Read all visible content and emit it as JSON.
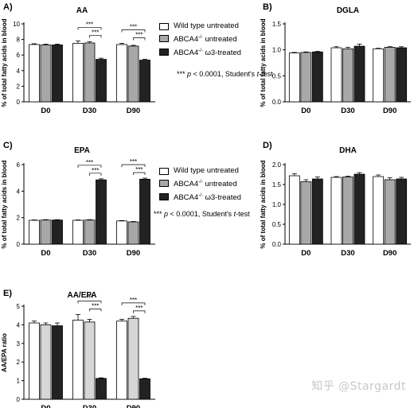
{
  "colors": {
    "wild_type_untreated": "#ffffff",
    "abca4_untreated_A_to_D": "#a8a8a8",
    "abca4_untreated_E": "#d6d6d6",
    "abca4_omega3_treated": "#222222"
  },
  "legend": {
    "items": [
      {
        "label": "Wild type untreated",
        "sup": ""
      },
      {
        "label_pre": "ABCA4",
        "sup": "-/-",
        "label_post": " untreated"
      },
      {
        "label_pre": "ABCA4",
        "sup": "-/-",
        "label_post": " ω3-treated"
      }
    ],
    "stat_note_pre": "*** ",
    "stat_note_p": "p",
    "stat_note_mid": " < 0.0001, Student's ",
    "stat_note_t": "t",
    "stat_note_post": "-test"
  },
  "watermark": "知乎 @Stargardt",
  "chart_data": [
    {
      "panel": "A)",
      "type": "bar",
      "title": "AA",
      "ylabel": "% of total fatty acids in blood",
      "ylim": [
        0,
        10
      ],
      "yticks": [
        "0",
        "2",
        "4",
        "6",
        "8",
        "10"
      ],
      "categories": [
        "D0",
        "D30",
        "D90"
      ],
      "series": [
        {
          "name": "Wild type untreated",
          "values": [
            7.35,
            7.5,
            7.35
          ],
          "errors": [
            0.1,
            0.3,
            0.15
          ]
        },
        {
          "name": "ABCA4-/- untreated",
          "values": [
            7.3,
            7.55,
            7.15
          ],
          "errors": [
            0.1,
            0.15,
            0.1
          ]
        },
        {
          "name": "ABCA4-/- ω3-treated",
          "values": [
            7.3,
            5.45,
            5.35
          ],
          "errors": [
            0.1,
            0.15,
            0.1
          ]
        }
      ],
      "significance": [
        "***",
        "***"
      ]
    },
    {
      "panel": "B)",
      "type": "bar",
      "title": "DGLA",
      "ylabel": "% of total fatty acids in blood",
      "ylim": [
        0,
        1.5
      ],
      "yticks": [
        "0.0",
        "0.5",
        "1.0",
        "1.5"
      ],
      "categories": [
        "D0",
        "D30",
        "D90"
      ],
      "series": [
        {
          "name": "Wild type untreated",
          "values": [
            0.94,
            1.04,
            1.02
          ],
          "errors": [
            0.01,
            0.02,
            0.01
          ]
        },
        {
          "name": "ABCA4-/- untreated",
          "values": [
            0.95,
            1.02,
            1.05
          ],
          "errors": [
            0.01,
            0.03,
            0.01
          ]
        },
        {
          "name": "ABCA4-/- ω3-treated",
          "values": [
            0.96,
            1.07,
            1.04
          ],
          "errors": [
            0.01,
            0.04,
            0.02
          ]
        }
      ],
      "significance": []
    },
    {
      "panel": "C)",
      "type": "bar",
      "title": "EPA",
      "ylabel": "% of total fatty acids in blood",
      "ylim": [
        0,
        6
      ],
      "yticks": [
        "0",
        "2",
        "4",
        "6"
      ],
      "categories": [
        "D0",
        "D30",
        "D90"
      ],
      "series": [
        {
          "name": "Wild type untreated",
          "values": [
            1.8,
            1.8,
            1.75
          ],
          "errors": [
            0.03,
            0.03,
            0.03
          ]
        },
        {
          "name": "ABCA4-/- untreated",
          "values": [
            1.82,
            1.82,
            1.68
          ],
          "errors": [
            0.03,
            0.03,
            0.03
          ]
        },
        {
          "name": "ABCA4-/- ω3-treated",
          "values": [
            1.82,
            4.85,
            4.9
          ],
          "errors": [
            0.03,
            0.08,
            0.08
          ]
        }
      ],
      "significance": [
        "***",
        "***"
      ]
    },
    {
      "panel": "D)",
      "type": "bar",
      "title": "DHA",
      "ylabel": "% of total fatty acids in blood",
      "ylim": [
        0,
        2.0
      ],
      "yticks": [
        "0.0",
        "0.5",
        "1.0",
        "1.5",
        "2.0"
      ],
      "categories": [
        "D0",
        "D30",
        "D90"
      ],
      "series": [
        {
          "name": "Wild type untreated",
          "values": [
            1.72,
            1.68,
            1.7
          ],
          "errors": [
            0.05,
            0.02,
            0.04
          ]
        },
        {
          "name": "ABCA4-/- untreated",
          "values": [
            1.57,
            1.69,
            1.62
          ],
          "errors": [
            0.05,
            0.02,
            0.05
          ]
        },
        {
          "name": "ABCA4-/- ω3-treated",
          "values": [
            1.64,
            1.76,
            1.64
          ],
          "errors": [
            0.05,
            0.04,
            0.04
          ]
        }
      ],
      "significance": []
    },
    {
      "panel": "E)",
      "type": "bar",
      "title": "AA/EPA",
      "ylabel": "AA/EPA ratio",
      "ylim": [
        0,
        5
      ],
      "yticks": [
        "0",
        "1",
        "2",
        "3",
        "4",
        "5"
      ],
      "categories": [
        "D0",
        "D30",
        "D90"
      ],
      "series": [
        {
          "name": "Wild type untreated",
          "values": [
            4.1,
            4.25,
            4.2
          ],
          "errors": [
            0.1,
            0.3,
            0.1
          ]
        },
        {
          "name": "ABCA4-/- untreated",
          "values": [
            4.0,
            4.15,
            4.35
          ],
          "errors": [
            0.1,
            0.15,
            0.1
          ]
        },
        {
          "name": "ABCA4-/- ω3-treated",
          "values": [
            3.95,
            1.12,
            1.1
          ],
          "errors": [
            0.15,
            0.03,
            0.03
          ]
        }
      ],
      "significance": [
        "***",
        "***"
      ]
    }
  ]
}
